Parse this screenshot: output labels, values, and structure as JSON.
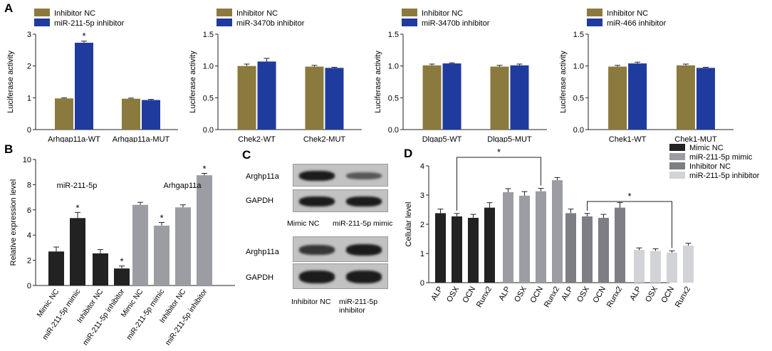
{
  "panel_letters": {
    "a": "A",
    "b": "B",
    "c": "C",
    "d": "D"
  },
  "colors": {
    "olive": "#8b7a3e",
    "blue": "#1f3b9e",
    "black": "#222222",
    "gray": "#9b9da3",
    "gray2": "#7e7f84",
    "gray3": "#d2d3d6",
    "blot_bg": "#c2c2c2",
    "band": "#1c1c1c"
  },
  "chart_data": [
    {
      "id": "A1",
      "type": "bar",
      "ylabel": "Luciferase activity",
      "ylim": [
        0,
        3
      ],
      "yticks": [
        "0",
        "1",
        "2",
        "3"
      ],
      "legend": [
        "Inhibitor NC",
        "miR-211-5p inhibitor"
      ],
      "categories": [
        "Arhgap11a-WT",
        "Arhgap11a-MUT"
      ],
      "series": [
        {
          "name": "Inhibitor NC",
          "values": [
            0.98,
            0.97
          ]
        },
        {
          "name": "miR-211-5p inhibitor",
          "values": [
            2.73,
            0.93
          ]
        }
      ],
      "errors": [
        [
          0.02,
          0.02
        ],
        [
          0.05,
          0.02
        ]
      ],
      "stars": [
        [
          null,
          "*"
        ]
      ]
    },
    {
      "id": "A2",
      "type": "bar",
      "ylabel": "Luciferase activity",
      "ylim": [
        0,
        1.5
      ],
      "yticks": [
        "0.0",
        "0.5",
        "1.0",
        "1.5"
      ],
      "legend": [
        "Inhibitor NC",
        "miR-3470b inhibitor"
      ],
      "categories": [
        "Chek2-WT",
        "Chek2-MUT"
      ],
      "series": [
        {
          "name": "Inhibitor NC",
          "values": [
            1.0,
            0.99
          ]
        },
        {
          "name": "miR-3470b inhibitor",
          "values": [
            1.07,
            0.97
          ]
        }
      ],
      "errors": [
        [
          0.03,
          0.02
        ],
        [
          0.05,
          0.01
        ]
      ]
    },
    {
      "id": "A3",
      "type": "bar",
      "ylabel": "Luciferase activity",
      "ylim": [
        0,
        1.5
      ],
      "yticks": [
        "0.0",
        "0.5",
        "1.0",
        "1.5"
      ],
      "legend": [
        "Inhibitor NC",
        "miR-3470b inhibitor"
      ],
      "categories": [
        "Dlgap5-WT",
        "Dlgap5-MUT"
      ],
      "series": [
        {
          "name": "Inhibitor NC",
          "values": [
            1.01,
            0.99
          ]
        },
        {
          "name": "miR-3470b inhibitor",
          "values": [
            1.04,
            1.01
          ]
        }
      ],
      "errors": [
        [
          0.02,
          0.02
        ],
        [
          0.01,
          0.02
        ]
      ]
    },
    {
      "id": "A4",
      "type": "bar",
      "ylabel": "Luciferase activity",
      "ylim": [
        0,
        1.5
      ],
      "yticks": [
        "0.0",
        "0.5",
        "1.0",
        "1.5"
      ],
      "legend": [
        "Inhibitor NC",
        "miR-466 inhibitor"
      ],
      "categories": [
        "Chek1-WT",
        "Chek1-MUT"
      ],
      "series": [
        {
          "name": "Inhibitor NC",
          "values": [
            0.99,
            1.01
          ]
        },
        {
          "name": "miR-466 inhibitor",
          "values": [
            1.04,
            0.97
          ]
        }
      ],
      "errors": [
        [
          0.02,
          0.02
        ],
        [
          0.02,
          0.01
        ]
      ]
    },
    {
      "id": "B",
      "type": "bar",
      "ylabel": "Relative expression level",
      "ylim": [
        0,
        10
      ],
      "yticks": [
        "0",
        "2",
        "4",
        "6",
        "8",
        "10"
      ],
      "group_labels": [
        "miR-211-5p",
        "Arhgap11a"
      ],
      "categories": [
        "Mimic NC",
        "miR-211-5p mimic",
        "Inhibitor NC",
        "miR-211-5p inhibitor",
        "Mimic NC",
        "miR-211-5p mimic",
        "Inhibitor NC",
        "miR-211-5p inhibitor"
      ],
      "values": [
        2.7,
        5.35,
        2.55,
        1.35,
        6.4,
        4.75,
        6.2,
        8.75
      ],
      "errors": [
        0.35,
        0.45,
        0.3,
        0.2,
        0.2,
        0.25,
        0.2,
        0.15
      ],
      "stars": [
        null,
        "*",
        null,
        "*",
        null,
        "*",
        null,
        "*"
      ]
    },
    {
      "id": "D",
      "type": "bar",
      "ylabel": "Cellular level",
      "ylim": [
        0,
        4
      ],
      "yticks": [
        "0",
        "1",
        "2",
        "3",
        "4"
      ],
      "categories": [
        "ALP",
        "OSX",
        "OCN",
        "Runx2"
      ],
      "series": [
        {
          "name": "Mimic NC",
          "values": [
            2.38,
            2.27,
            2.22,
            2.57
          ],
          "errors": [
            0.14,
            0.1,
            0.12,
            0.17
          ]
        },
        {
          "name": "miR-211-5p mimic",
          "values": [
            3.1,
            2.98,
            3.13,
            3.51
          ],
          "errors": [
            0.12,
            0.14,
            0.1,
            0.09
          ]
        },
        {
          "name": "Inhibitor NC",
          "values": [
            2.38,
            2.27,
            2.22,
            2.57
          ],
          "errors": [
            0.14,
            0.1,
            0.12,
            0.17
          ]
        },
        {
          "name": "miR-211-5p inhibitor",
          "values": [
            1.12,
            1.09,
            1.03,
            1.27
          ],
          "errors": [
            0.07,
            0.07,
            0.06,
            0.08
          ]
        }
      ],
      "brackets": [
        "*",
        "*"
      ]
    }
  ],
  "blot": {
    "top": {
      "rows": [
        "Arghp11a",
        "GAPDH"
      ],
      "lanes": [
        "Mimic NC",
        "miR-211-5p mimic"
      ],
      "intensity": [
        [
          1.0,
          0.45
        ],
        [
          1.0,
          1.0
        ]
      ]
    },
    "bottom": {
      "rows": [
        "Arghp11a",
        "GAPDH"
      ],
      "lanes": [
        "Inhibitor NC",
        "miR-211-5p inhibitor"
      ],
      "intensity": [
        [
          0.75,
          1.0
        ],
        [
          1.0,
          1.0
        ]
      ]
    }
  }
}
